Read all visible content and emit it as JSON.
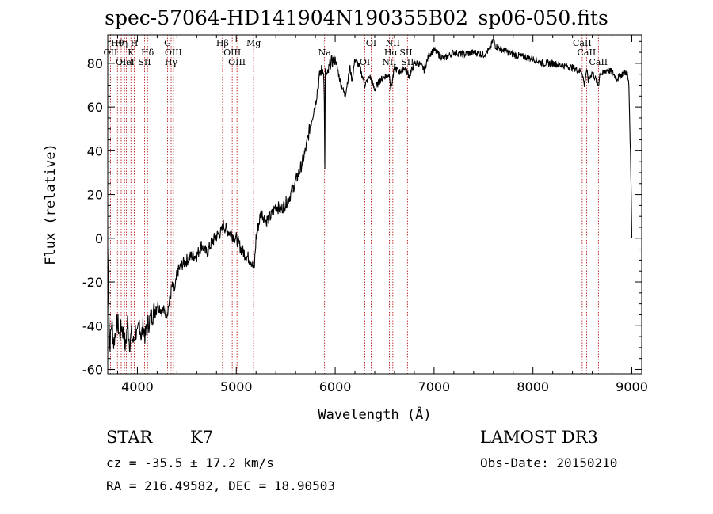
{
  "chart_data": {
    "type": "line",
    "title": "spec-57064-HD141904N190355B02_sp06-050.fits",
    "xlabel": "Wavelength (Å)",
    "ylabel": "Flux (relative)",
    "xlim": [
      3700,
      9100
    ],
    "ylim": [
      -62,
      93
    ],
    "xticks": [
      4000,
      5000,
      6000,
      7000,
      8000,
      9000
    ],
    "yticks": [
      -60,
      -40,
      -20,
      0,
      20,
      40,
      60,
      80
    ],
    "x": [
      3700,
      3720,
      3740,
      3760,
      3780,
      3800,
      3820,
      3840,
      3860,
      3880,
      3900,
      3920,
      3940,
      3960,
      3980,
      4000,
      4020,
      4040,
      4060,
      4080,
      4100,
      4120,
      4150,
      4200,
      4250,
      4300,
      4330,
      4350,
      4380,
      4400,
      4450,
      4500,
      4550,
      4600,
      4650,
      4700,
      4750,
      4800,
      4850,
      4870,
      4900,
      4950,
      5000,
      5050,
      5100,
      5150,
      5180,
      5200,
      5250,
      5300,
      5350,
      5400,
      5450,
      5500,
      5550,
      5600,
      5650,
      5700,
      5750,
      5780,
      5800,
      5850,
      5880,
      5890,
      5895,
      5900,
      5920,
      5950,
      6000,
      6050,
      6100,
      6150,
      6170,
      6200,
      6250,
      6300,
      6350,
      6400,
      6450,
      6500,
      6550,
      6563,
      6600,
      6650,
      6700,
      6750,
      6800,
      6850,
      6900,
      6950,
      7000,
      7100,
      7200,
      7300,
      7400,
      7500,
      7560,
      7600,
      7620,
      7650,
      7700,
      7800,
      7900,
      8000,
      8100,
      8200,
      8300,
      8400,
      8498,
      8520,
      8542,
      8560,
      8600,
      8662,
      8680,
      8700,
      8750,
      8800,
      8850,
      8900,
      8950,
      8970,
      8990,
      9000
    ],
    "y": [
      -5,
      -50,
      -38,
      -48,
      -42,
      -38,
      -45,
      -40,
      -44,
      -50,
      -38,
      -48,
      -44,
      -48,
      -42,
      -46,
      -38,
      -45,
      -40,
      -45,
      -40,
      -38,
      -35,
      -30,
      -33,
      -34,
      -28,
      -22,
      -24,
      -16,
      -12,
      -10,
      -8,
      -8,
      -3,
      -7,
      -2,
      1,
      3,
      6,
      4,
      2,
      0,
      -5,
      -8,
      -10,
      -15,
      0,
      12,
      8,
      10,
      15,
      13,
      16,
      20,
      26,
      32,
      40,
      52,
      58,
      62,
      76,
      78,
      65,
      30,
      76,
      74,
      80,
      82,
      72,
      65,
      78,
      72,
      82,
      78,
      70,
      74,
      68,
      72,
      74,
      75,
      68,
      78,
      76,
      78,
      74,
      80,
      80,
      77,
      84,
      86,
      82,
      85,
      84,
      85,
      84,
      86,
      91,
      88,
      87,
      86,
      84,
      83,
      82,
      80,
      80,
      79,
      78,
      76,
      70,
      77,
      72,
      76,
      70,
      76,
      75,
      77,
      76,
      73,
      75,
      76,
      70,
      30,
      0
    ],
    "series": [
      {
        "values_ref": "y"
      }
    ],
    "line_markers": [
      {
        "name": "Hθ",
        "wavelength": 3798
      },
      {
        "name": "OII",
        "wavelength": 3727
      },
      {
        "name": "OIII",
        "wavelength": 3869
      },
      {
        "name": "Hη",
        "wavelength": 3836
      },
      {
        "name": "K",
        "wavelength": 3934
      },
      {
        "name": "HeI",
        "wavelength": 3889
      },
      {
        "name": "H",
        "wavelength": 3969
      },
      {
        "name": "Hδ",
        "wavelength": 4102
      },
      {
        "name": "SII",
        "wavelength": 4072
      },
      {
        "name": "G",
        "wavelength": 4305
      },
      {
        "name": "OIII",
        "wavelength": 4364
      },
      {
        "name": "Hγ",
        "wavelength": 4341
      },
      {
        "name": "Hβ",
        "wavelength": 4861
      },
      {
        "name": "OIII",
        "wavelength": 4959
      },
      {
        "name": "OIII",
        "wavelength": 5007
      },
      {
        "name": "Mg",
        "wavelength": 5175
      },
      {
        "name": "Na",
        "wavelength": 5893
      },
      {
        "name": "OI",
        "wavelength": 6300
      },
      {
        "name": "OI",
        "wavelength": 6364
      },
      {
        "name": "Hα",
        "wavelength": 6563
      },
      {
        "name": "NII",
        "wavelength": 6548
      },
      {
        "name": "NII",
        "wavelength": 6583
      },
      {
        "name": "SII",
        "wavelength": 6716
      },
      {
        "name": "SII",
        "wavelength": 6731
      },
      {
        "name": "CaII",
        "wavelength": 8498
      },
      {
        "name": "CaII",
        "wavelength": 8542
      },
      {
        "name": "CaII",
        "wavelength": 8662
      }
    ],
    "grid": false
  },
  "info": {
    "class": "STAR",
    "subclass": "K7",
    "survey": "LAMOST DR3",
    "cz": "cz = -35.5 ± 17.2 km/s",
    "obsdate": "Obs-Date: 20150210",
    "radec": "RA = 216.49582, DEC =  18.90503"
  }
}
